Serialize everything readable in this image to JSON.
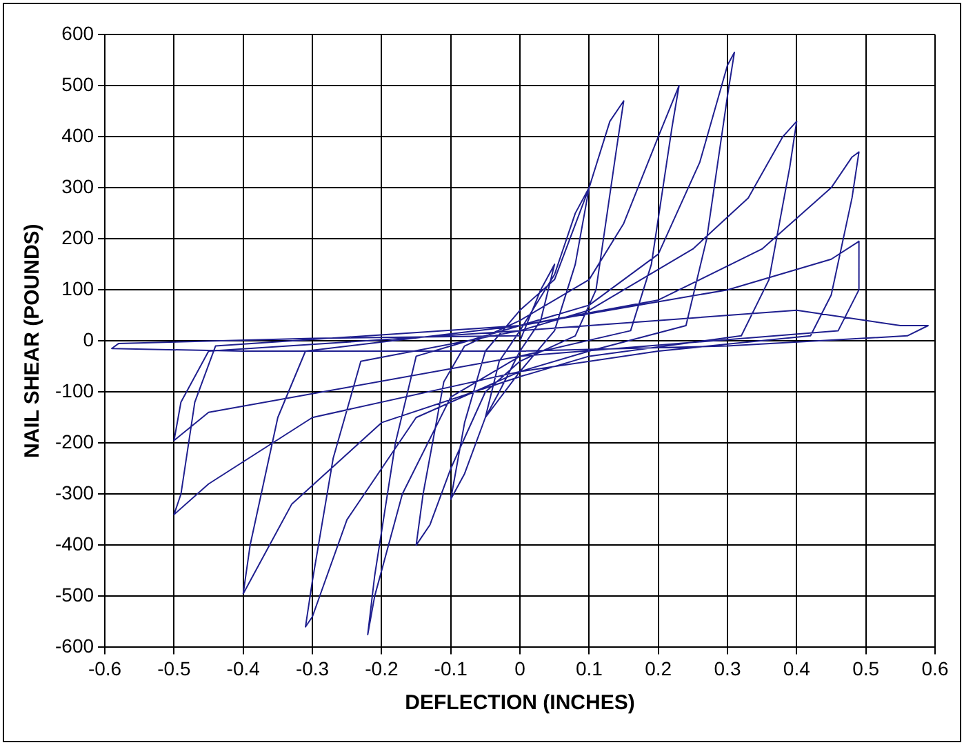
{
  "chart_data": {
    "type": "line",
    "xlabel": "DEFLECTION (INCHES)",
    "ylabel": "NAIL SHEAR (POUNDS)",
    "xlim": [
      -0.6,
      0.6
    ],
    "xticks": [
      -0.6,
      -0.5,
      -0.4,
      -0.3,
      -0.2,
      -0.1,
      0,
      0.1,
      0.2,
      0.3,
      0.4,
      0.5,
      0.6
    ],
    "ylim": [
      -600,
      600
    ],
    "yticks": [
      -600,
      -500,
      -400,
      -300,
      -200,
      -100,
      0,
      100,
      200,
      300,
      400,
      500,
      600
    ],
    "grid": true,
    "legend": false,
    "marker": "none",
    "line_style": "solid",
    "series": [
      {
        "color": "#1f1f8f",
        "x": [
          0,
          0.03,
          0.05,
          0.03,
          0,
          -0.03,
          -0.05,
          -0.03,
          0,
          0.05,
          0.08,
          0.1,
          0.08,
          0.05,
          0,
          -0.05,
          -0.08,
          -0.1,
          -0.08,
          -0.05,
          0,
          0.05,
          0.1,
          0.13,
          0.15,
          0.14,
          0.11,
          0.08,
          0,
          -0.05,
          -0.1,
          -0.13,
          -0.15,
          -0.14,
          -0.11,
          -0.08,
          0,
          0.1,
          0.15,
          0.2,
          0.23,
          0.22,
          0.19,
          0.16,
          0,
          -0.1,
          -0.17,
          -0.21,
          -0.22,
          -0.21,
          -0.18,
          -0.15,
          0,
          0.1,
          0.2,
          0.26,
          0.3,
          0.31,
          0.3,
          0.27,
          0.24,
          0.1,
          0,
          -0.15,
          -0.25,
          -0.3,
          -0.31,
          -0.3,
          -0.27,
          -0.23,
          0,
          0.1,
          0.25,
          0.33,
          0.38,
          0.4,
          0.39,
          0.36,
          0.32,
          0.1,
          0,
          -0.2,
          -0.33,
          -0.39,
          -0.4,
          -0.39,
          -0.35,
          -0.31,
          0,
          0.2,
          0.35,
          0.45,
          0.48,
          0.49,
          0.48,
          0.45,
          0.42,
          0.2,
          0,
          -0.3,
          -0.45,
          -0.5,
          -0.49,
          -0.47,
          -0.44,
          0,
          0.3,
          0.45,
          0.49,
          0.49,
          0.46,
          0,
          -0.45,
          -0.5,
          -0.49,
          -0.45,
          0,
          0.4,
          0.55,
          0.59,
          0.56,
          0.3,
          0,
          -0.4,
          -0.59,
          -0.58,
          -0.3,
          0
        ],
        "values": [
          0,
          100,
          150,
          40,
          -20,
          -100,
          -150,
          -40,
          20,
          130,
          250,
          300,
          150,
          20,
          -60,
          -150,
          -260,
          -310,
          -160,
          -20,
          60,
          120,
          300,
          430,
          470,
          380,
          100,
          10,
          -40,
          -100,
          -250,
          -360,
          -400,
          -300,
          -80,
          -10,
          40,
          120,
          230,
          400,
          500,
          420,
          150,
          20,
          -30,
          -110,
          -300,
          -500,
          -575,
          -460,
          -200,
          -30,
          30,
          70,
          170,
          350,
          540,
          565,
          480,
          200,
          30,
          -20,
          -60,
          -150,
          -350,
          -540,
          -560,
          -470,
          -230,
          -40,
          20,
          60,
          180,
          280,
          400,
          430,
          340,
          120,
          10,
          -30,
          -70,
          -160,
          -320,
          -470,
          -495,
          -400,
          -150,
          -20,
          30,
          80,
          180,
          300,
          360,
          370,
          280,
          90,
          10,
          -20,
          -60,
          -150,
          -280,
          -340,
          -300,
          -120,
          -10,
          30,
          100,
          160,
          195,
          100,
          20,
          -30,
          -140,
          -195,
          -120,
          -20,
          20,
          60,
          30,
          30,
          10,
          -10,
          -20,
          -20,
          -15,
          -5,
          5,
          10
        ]
      }
    ]
  }
}
